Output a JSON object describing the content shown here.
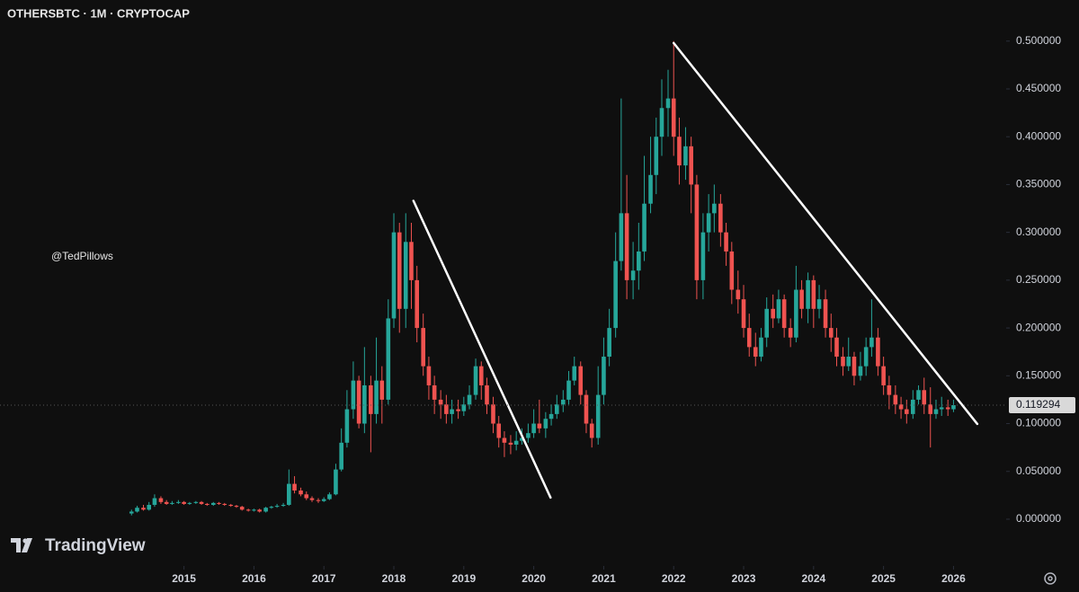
{
  "chart_data": {
    "type": "candlestick",
    "title": "OTHERSBTC · 1M · CRYPTOCAP",
    "watermark": "@TedPillows",
    "brand": "TradingView",
    "up_color": "#26a69a",
    "down_color": "#ef5350",
    "trendline_color": "#ffffff",
    "x": [
      2014.25,
      2014.33,
      2014.42,
      2014.5,
      2014.58,
      2014.67,
      2014.75,
      2014.83,
      2014.92,
      2015,
      2015.08,
      2015.17,
      2015.25,
      2015.33,
      2015.42,
      2015.5,
      2015.58,
      2015.67,
      2015.75,
      2015.83,
      2015.92,
      2016,
      2016.08,
      2016.17,
      2016.25,
      2016.33,
      2016.42,
      2016.5,
      2016.58,
      2016.67,
      2016.75,
      2016.83,
      2016.92,
      2017,
      2017.08,
      2017.17,
      2017.25,
      2017.33,
      2017.42,
      2017.5,
      2017.58,
      2017.67,
      2017.75,
      2017.83,
      2017.92,
      2018,
      2018.08,
      2018.17,
      2018.25,
      2018.33,
      2018.42,
      2018.5,
      2018.58,
      2018.67,
      2018.75,
      2018.83,
      2018.92,
      2019,
      2019.08,
      2019.17,
      2019.25,
      2019.33,
      2019.42,
      2019.5,
      2019.58,
      2019.67,
      2019.75,
      2019.83,
      2019.92,
      2020,
      2020.08,
      2020.17,
      2020.25,
      2020.33,
      2020.42,
      2020.5,
      2020.58,
      2020.67,
      2020.75,
      2020.83,
      2020.92,
      2021,
      2021.08,
      2021.17,
      2021.25,
      2021.33,
      2021.42,
      2021.5,
      2021.58,
      2021.67,
      2021.75,
      2021.83,
      2021.92,
      2022,
      2022.08,
      2022.17,
      2022.25,
      2022.33,
      2022.42,
      2022.5,
      2022.58,
      2022.67,
      2022.75,
      2022.83,
      2022.92,
      2023,
      2023.08,
      2023.17,
      2023.25,
      2023.33,
      2023.42,
      2023.5,
      2023.58,
      2023.67,
      2023.75,
      2023.83,
      2023.92,
      2024,
      2024.08,
      2024.17,
      2024.25,
      2024.33,
      2024.42,
      2024.5,
      2024.58,
      2024.67,
      2024.75,
      2024.83,
      2024.92,
      2025,
      2025.08,
      2025.17,
      2025.25,
      2025.33,
      2025.42,
      2025.5,
      2025.58,
      2025.67,
      2025.75,
      2025.83,
      2025.92,
      2026
    ],
    "open": [
      0.006,
      0.008,
      0.012,
      0.01,
      0.015,
      0.022,
      0.018,
      0.016,
      0.017,
      0.018,
      0.016,
      0.017,
      0.018,
      0.016,
      0.015,
      0.017,
      0.016,
      0.015,
      0.014,
      0.013,
      0.01,
      0.009,
      0.01,
      0.008,
      0.012,
      0.013,
      0.014,
      0.015,
      0.037,
      0.03,
      0.026,
      0.022,
      0.02,
      0.019,
      0.021,
      0.026,
      0.052,
      0.08,
      0.115,
      0.145,
      0.1,
      0.14,
      0.11,
      0.145,
      0.125,
      0.21,
      0.3,
      0.22,
      0.29,
      0.25,
      0.2,
      0.16,
      0.14,
      0.125,
      0.12,
      0.11,
      0.115,
      0.113,
      0.12,
      0.13,
      0.16,
      0.14,
      0.12,
      0.1,
      0.085,
      0.08,
      0.078,
      0.082,
      0.085,
      0.09,
      0.1,
      0.095,
      0.105,
      0.11,
      0.12,
      0.125,
      0.145,
      0.16,
      0.13,
      0.1,
      0.085,
      0.13,
      0.17,
      0.2,
      0.27,
      0.32,
      0.25,
      0.26,
      0.28,
      0.33,
      0.36,
      0.4,
      0.43,
      0.44,
      0.4,
      0.37,
      0.39,
      0.35,
      0.25,
      0.3,
      0.32,
      0.33,
      0.3,
      0.28,
      0.24,
      0.23,
      0.2,
      0.18,
      0.17,
      0.19,
      0.22,
      0.21,
      0.23,
      0.2,
      0.19,
      0.24,
      0.22,
      0.25,
      0.22,
      0.23,
      0.2,
      0.19,
      0.17,
      0.16,
      0.17,
      0.15,
      0.16,
      0.18,
      0.19,
      0.16,
      0.14,
      0.13,
      0.12,
      0.115,
      0.11,
      0.125,
      0.135,
      0.12,
      0.11,
      0.115,
      0.117,
      0.115
    ],
    "high": [
      0.01,
      0.014,
      0.015,
      0.018,
      0.026,
      0.024,
      0.02,
      0.019,
      0.02,
      0.019,
      0.018,
      0.019,
      0.019,
      0.017,
      0.018,
      0.018,
      0.017,
      0.016,
      0.015,
      0.014,
      0.011,
      0.011,
      0.011,
      0.013,
      0.014,
      0.016,
      0.017,
      0.052,
      0.045,
      0.033,
      0.029,
      0.024,
      0.022,
      0.023,
      0.028,
      0.058,
      0.095,
      0.135,
      0.165,
      0.15,
      0.18,
      0.15,
      0.19,
      0.16,
      0.23,
      0.32,
      0.31,
      0.32,
      0.31,
      0.265,
      0.215,
      0.17,
      0.15,
      0.135,
      0.13,
      0.125,
      0.125,
      0.128,
      0.14,
      0.168,
      0.165,
      0.148,
      0.128,
      0.108,
      0.092,
      0.088,
      0.092,
      0.095,
      0.1,
      0.115,
      0.125,
      0.112,
      0.12,
      0.13,
      0.135,
      0.155,
      0.17,
      0.165,
      0.135,
      0.105,
      0.16,
      0.19,
      0.22,
      0.3,
      0.44,
      0.36,
      0.29,
      0.31,
      0.38,
      0.4,
      0.42,
      0.46,
      0.47,
      0.5,
      0.42,
      0.41,
      0.4,
      0.36,
      0.32,
      0.34,
      0.35,
      0.34,
      0.31,
      0.29,
      0.26,
      0.245,
      0.215,
      0.195,
      0.2,
      0.232,
      0.235,
      0.24,
      0.235,
      0.21,
      0.265,
      0.25,
      0.258,
      0.255,
      0.245,
      0.24,
      0.215,
      0.2,
      0.18,
      0.19,
      0.175,
      0.175,
      0.19,
      0.23,
      0.2,
      0.17,
      0.15,
      0.14,
      0.128,
      0.125,
      0.135,
      0.14,
      0.148,
      0.138,
      0.125,
      0.128,
      0.125,
      0.125
    ],
    "low": [
      0.004,
      0.007,
      0.009,
      0.009,
      0.013,
      0.016,
      0.015,
      0.015,
      0.016,
      0.015,
      0.015,
      0.016,
      0.015,
      0.014,
      0.014,
      0.015,
      0.014,
      0.013,
      0.012,
      0.009,
      0.008,
      0.008,
      0.007,
      0.007,
      0.011,
      0.012,
      0.013,
      0.014,
      0.027,
      0.024,
      0.02,
      0.018,
      0.017,
      0.018,
      0.02,
      0.025,
      0.05,
      0.075,
      0.105,
      0.095,
      0.09,
      0.07,
      0.1,
      0.1,
      0.12,
      0.2,
      0.195,
      0.2,
      0.22,
      0.185,
      0.15,
      0.125,
      0.11,
      0.105,
      0.1,
      0.1,
      0.105,
      0.108,
      0.115,
      0.125,
      0.125,
      0.11,
      0.09,
      0.075,
      0.065,
      0.068,
      0.072,
      0.078,
      0.08,
      0.085,
      0.09,
      0.085,
      0.098,
      0.105,
      0.112,
      0.12,
      0.14,
      0.12,
      0.09,
      0.075,
      0.078,
      0.12,
      0.16,
      0.19,
      0.26,
      0.23,
      0.23,
      0.24,
      0.27,
      0.32,
      0.34,
      0.38,
      0.4,
      0.38,
      0.35,
      0.355,
      0.32,
      0.23,
      0.23,
      0.28,
      0.3,
      0.285,
      0.265,
      0.225,
      0.215,
      0.19,
      0.17,
      0.16,
      0.165,
      0.18,
      0.2,
      0.205,
      0.19,
      0.18,
      0.185,
      0.21,
      0.205,
      0.2,
      0.21,
      0.19,
      0.175,
      0.16,
      0.15,
      0.155,
      0.14,
      0.145,
      0.15,
      0.17,
      0.15,
      0.13,
      0.115,
      0.11,
      0.105,
      0.1,
      0.105,
      0.12,
      0.11,
      0.075,
      0.105,
      0.108,
      0.108,
      0.112
    ],
    "close": [
      0.008,
      0.012,
      0.01,
      0.015,
      0.022,
      0.018,
      0.016,
      0.017,
      0.018,
      0.016,
      0.017,
      0.018,
      0.016,
      0.015,
      0.017,
      0.016,
      0.015,
      0.014,
      0.013,
      0.01,
      0.009,
      0.01,
      0.008,
      0.012,
      0.013,
      0.014,
      0.015,
      0.037,
      0.03,
      0.026,
      0.022,
      0.02,
      0.019,
      0.021,
      0.026,
      0.052,
      0.08,
      0.115,
      0.145,
      0.1,
      0.14,
      0.11,
      0.145,
      0.125,
      0.21,
      0.3,
      0.22,
      0.29,
      0.25,
      0.2,
      0.16,
      0.14,
      0.125,
      0.12,
      0.11,
      0.115,
      0.113,
      0.12,
      0.13,
      0.16,
      0.14,
      0.12,
      0.1,
      0.085,
      0.08,
      0.078,
      0.082,
      0.085,
      0.09,
      0.1,
      0.095,
      0.105,
      0.11,
      0.12,
      0.125,
      0.145,
      0.16,
      0.13,
      0.1,
      0.085,
      0.13,
      0.17,
      0.2,
      0.27,
      0.32,
      0.25,
      0.26,
      0.28,
      0.33,
      0.36,
      0.4,
      0.43,
      0.44,
      0.4,
      0.37,
      0.39,
      0.35,
      0.25,
      0.3,
      0.32,
      0.33,
      0.3,
      0.28,
      0.24,
      0.23,
      0.2,
      0.18,
      0.17,
      0.19,
      0.22,
      0.21,
      0.23,
      0.2,
      0.19,
      0.24,
      0.22,
      0.25,
      0.22,
      0.23,
      0.2,
      0.19,
      0.17,
      0.16,
      0.17,
      0.15,
      0.16,
      0.18,
      0.19,
      0.16,
      0.14,
      0.13,
      0.12,
      0.115,
      0.11,
      0.125,
      0.135,
      0.12,
      0.11,
      0.115,
      0.117,
      0.115,
      0.119294
    ],
    "last_price": 0.119294,
    "trendlines": [
      {
        "x": [
          2018.28,
          2020.24
        ],
        "y": [
          0.333,
          0.0226
        ]
      },
      {
        "x": [
          2022.0,
          2026.34
        ],
        "y": [
          0.498,
          0.0996
        ]
      }
    ],
    "xlim": [
      2012.37,
      2026.74
    ],
    "xticks": [
      2015,
      2016,
      2017,
      2018,
      2019,
      2020,
      2021,
      2022,
      2023,
      2024,
      2025,
      2026
    ],
    "ylim": [
      -0.047,
      0.543
    ],
    "yticks": [
      {
        "value": 0,
        "label": "0.000000"
      },
      {
        "value": 0.05,
        "label": "0.050000"
      },
      {
        "value": 0.1,
        "label": "0.100000"
      },
      {
        "value": 0.15,
        "label": "0.150000"
      },
      {
        "value": 0.2,
        "label": "0.200000"
      },
      {
        "value": 0.25,
        "label": "0.250000"
      },
      {
        "value": 0.3,
        "label": "0.300000"
      },
      {
        "value": 0.35,
        "label": "0.350000"
      },
      {
        "value": 0.4,
        "label": "0.400000"
      },
      {
        "value": 0.45,
        "label": "0.450000"
      },
      {
        "value": 0.5,
        "label": "0.500000"
      }
    ]
  }
}
